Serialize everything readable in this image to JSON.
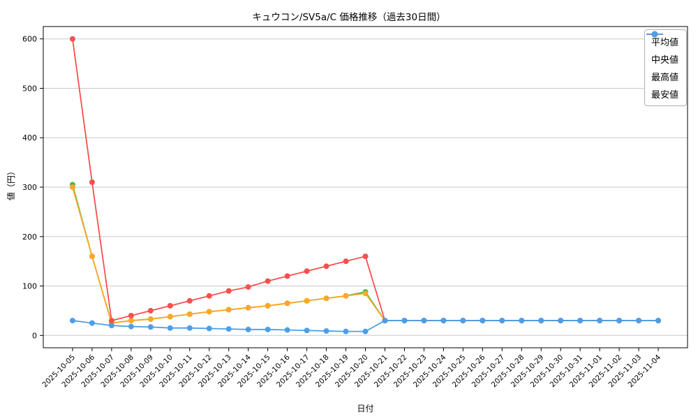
{
  "chart_data": {
    "type": "line",
    "title": "キュウコン/SV5a/C 価格推移（過去30日間）",
    "xlabel": "日付",
    "ylabel": "値（円）",
    "grid": true,
    "legend_position": "upper right",
    "ylim": [
      0,
      600
    ],
    "yticks": [
      0,
      100,
      200,
      300,
      400,
      500,
      600
    ],
    "x": [
      "2025-10-05",
      "2025-10-06",
      "2025-10-07",
      "2025-10-08",
      "2025-10-09",
      "2025-10-10",
      "2025-10-11",
      "2025-10-12",
      "2025-10-13",
      "2025-10-14",
      "2025-10-15",
      "2025-10-16",
      "2025-10-17",
      "2025-10-18",
      "2025-10-19",
      "2025-10-20",
      "2025-10-21",
      "2025-10-22",
      "2025-10-23",
      "2025-10-24",
      "2025-10-25",
      "2025-10-26",
      "2025-10-27",
      "2025-10-28",
      "2025-10-29",
      "2025-10-30",
      "2025-10-31",
      "2025-11-01",
      "2025-11-02",
      "2025-11-03",
      "2025-11-04"
    ],
    "series": [
      {
        "name": "平均値",
        "color": "#3dba4e",
        "values": [
          305,
          160,
          25,
          30,
          33,
          38,
          43,
          48,
          52,
          56,
          60,
          65,
          70,
          75,
          80,
          88,
          30,
          30,
          30,
          30,
          30,
          30,
          30,
          30,
          30,
          30,
          30,
          30,
          30,
          30,
          30
        ]
      },
      {
        "name": "中央値",
        "color": "#ffa726",
        "values": [
          300,
          160,
          25,
          30,
          33,
          38,
          43,
          48,
          52,
          56,
          60,
          65,
          70,
          75,
          80,
          85,
          30,
          30,
          30,
          30,
          30,
          30,
          30,
          30,
          30,
          30,
          30,
          30,
          30,
          30,
          30
        ]
      },
      {
        "name": "最高値",
        "color": "#f5504e",
        "values": [
          600,
          310,
          30,
          40,
          50,
          60,
          70,
          80,
          90,
          98,
          110,
          120,
          130,
          140,
          150,
          160,
          30,
          30,
          30,
          30,
          30,
          30,
          30,
          30,
          30,
          30,
          30,
          30,
          30,
          30,
          30
        ]
      },
      {
        "name": "最安値",
        "color": "#4b9fea",
        "values": [
          30,
          25,
          20,
          18,
          17,
          15,
          15,
          14,
          13,
          12,
          12,
          11,
          10,
          9,
          8,
          8,
          30,
          30,
          30,
          30,
          30,
          30,
          30,
          30,
          30,
          30,
          30,
          30,
          30,
          30,
          30
        ]
      }
    ]
  }
}
